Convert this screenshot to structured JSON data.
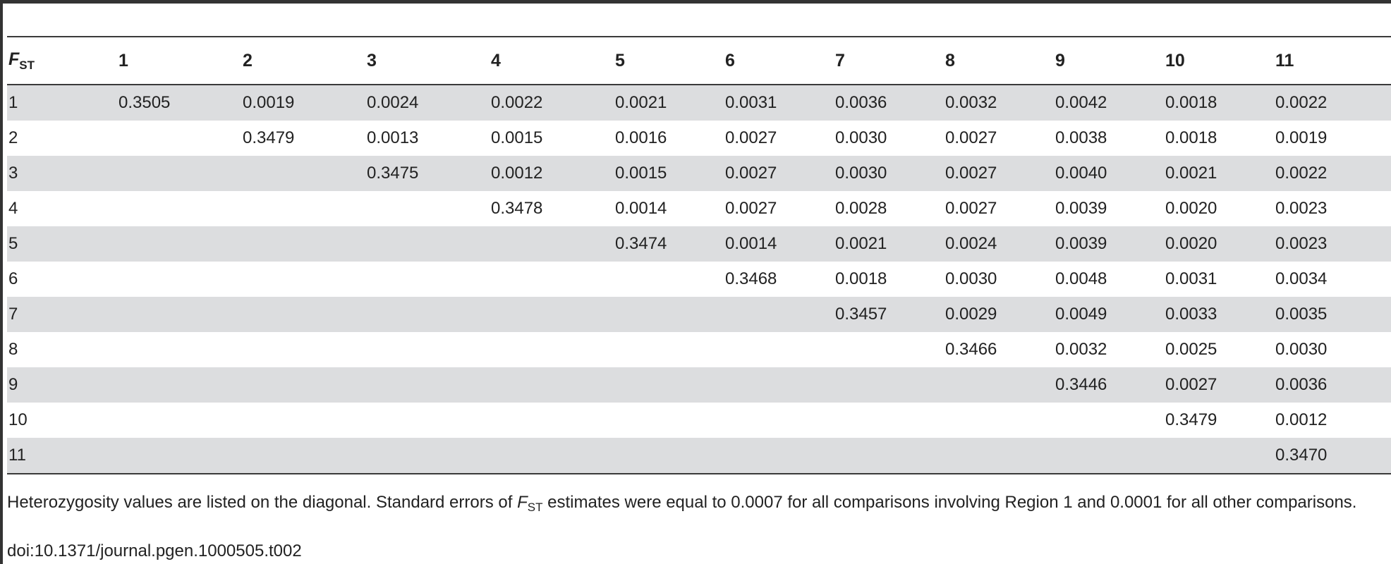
{
  "table": {
    "corner": {
      "letter": "F",
      "subscript": "ST"
    },
    "columns": [
      "1",
      "2",
      "3",
      "4",
      "5",
      "6",
      "7",
      "8",
      "9",
      "10",
      "11"
    ],
    "rows": [
      {
        "label": "1",
        "cells": [
          "0.3505",
          "0.0019",
          "0.0024",
          "0.0022",
          "0.0021",
          "0.0031",
          "0.0036",
          "0.0032",
          "0.0042",
          "0.0018",
          "0.0022"
        ]
      },
      {
        "label": "2",
        "cells": [
          "",
          "0.3479",
          "0.0013",
          "0.0015",
          "0.0016",
          "0.0027",
          "0.0030",
          "0.0027",
          "0.0038",
          "0.0018",
          "0.0019"
        ]
      },
      {
        "label": "3",
        "cells": [
          "",
          "",
          "0.3475",
          "0.0012",
          "0.0015",
          "0.0027",
          "0.0030",
          "0.0027",
          "0.0040",
          "0.0021",
          "0.0022"
        ]
      },
      {
        "label": "4",
        "cells": [
          "",
          "",
          "",
          "0.3478",
          "0.0014",
          "0.0027",
          "0.0028",
          "0.0027",
          "0.0039",
          "0.0020",
          "0.0023"
        ]
      },
      {
        "label": "5",
        "cells": [
          "",
          "",
          "",
          "",
          "0.3474",
          "0.0014",
          "0.0021",
          "0.0024",
          "0.0039",
          "0.0020",
          "0.0023"
        ]
      },
      {
        "label": "6",
        "cells": [
          "",
          "",
          "",
          "",
          "",
          "0.3468",
          "0.0018",
          "0.0030",
          "0.0048",
          "0.0031",
          "0.0034"
        ]
      },
      {
        "label": "7",
        "cells": [
          "",
          "",
          "",
          "",
          "",
          "",
          "0.3457",
          "0.0029",
          "0.0049",
          "0.0033",
          "0.0035"
        ]
      },
      {
        "label": "8",
        "cells": [
          "",
          "",
          "",
          "",
          "",
          "",
          "",
          "0.3466",
          "0.0032",
          "0.0025",
          "0.0030"
        ]
      },
      {
        "label": "9",
        "cells": [
          "",
          "",
          "",
          "",
          "",
          "",
          "",
          "",
          "0.3446",
          "0.0027",
          "0.0036"
        ]
      },
      {
        "label": "10",
        "cells": [
          "",
          "",
          "",
          "",
          "",
          "",
          "",
          "",
          "",
          "0.3479",
          "0.0012"
        ]
      },
      {
        "label": "11",
        "cells": [
          "",
          "",
          "",
          "",
          "",
          "",
          "",
          "",
          "",
          "",
          "0.3470"
        ]
      }
    ]
  },
  "footnote": {
    "part1": "Heterozygosity values are listed on the diagonal. Standard errors of ",
    "fst_letter": "F",
    "fst_sub": "ST",
    "part2": " estimates were equal to 0.0007 for all comparisons involving Region 1 and 0.0001 for all other comparisons."
  },
  "doi": "doi:10.1371/journal.pgen.1000505.t002",
  "colors": {
    "stripe": "#dcdddf",
    "rule": "#3a3a3a",
    "text": "#222222"
  }
}
